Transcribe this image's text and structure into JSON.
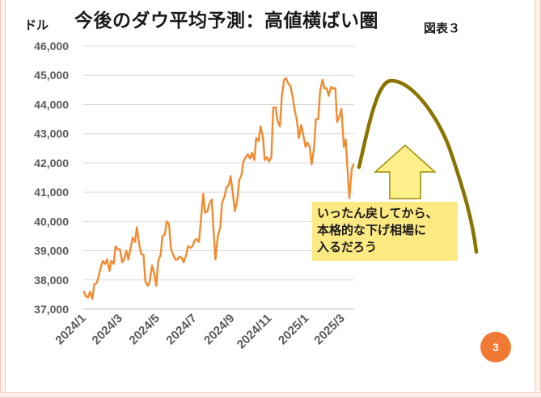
{
  "title": "今後のダウ平均予測：高値横ばい圏",
  "figure_label": "図表３",
  "unit_label": "ドル",
  "callout": {
    "lines": [
      "いったん戻してから、",
      "本格的な下げ相場に",
      "入るだろう"
    ]
  },
  "page_number": "3",
  "colors": {
    "line": "#f28b30",
    "forecast_curve": "#8b7300",
    "arrow_fill": "#fdf08a",
    "arrow_stroke": "#9c8a00",
    "callout_bg": "#fde982",
    "page_badge": "#f07a34",
    "grid": "#d9d9d9"
  },
  "chart_data": {
    "type": "line",
    "title": "今後のダウ平均予測：高値横ばい圏",
    "ylabel": "ドル",
    "xlabel": "",
    "ylim": [
      37000,
      46000
    ],
    "y_ticks": [
      37000,
      38000,
      39000,
      40000,
      41000,
      42000,
      43000,
      44000,
      45000,
      46000
    ],
    "y_tick_labels": [
      "37,000",
      "38,000",
      "39,000",
      "40,000",
      "41,000",
      "42,000",
      "43,000",
      "44,000",
      "45,000",
      "46,000"
    ],
    "x_ticks": [
      "2024-01-01",
      "2024-03-01",
      "2024-05-01",
      "2024-07-01",
      "2024-09-01",
      "2024-11-01",
      "2025-01-01",
      "2025-03-01"
    ],
    "x_tick_labels": [
      "2024/1",
      "2024/3",
      "2024/5",
      "2024/7",
      "2024/9",
      "2024/11",
      "2025/1",
      "2025/3"
    ],
    "grid": true,
    "legend": "none",
    "series": [
      {
        "points": [
          [
            "2024-01-02",
            37600
          ],
          [
            "2024-01-05",
            37450
          ],
          [
            "2024-01-09",
            37400
          ],
          [
            "2024-01-12",
            37600
          ],
          [
            "2024-01-16",
            37350
          ],
          [
            "2024-01-19",
            37850
          ],
          [
            "2024-01-23",
            37900
          ],
          [
            "2024-01-26",
            38100
          ],
          [
            "2024-01-30",
            38450
          ],
          [
            "2024-02-02",
            38650
          ],
          [
            "2024-02-06",
            38550
          ],
          [
            "2024-02-09",
            38700
          ],
          [
            "2024-02-13",
            38300
          ],
          [
            "2024-02-16",
            38650
          ],
          [
            "2024-02-20",
            38550
          ],
          [
            "2024-02-23",
            39150
          ],
          [
            "2024-02-27",
            39050
          ],
          [
            "2024-03-01",
            39050
          ],
          [
            "2024-03-05",
            38600
          ],
          [
            "2024-03-08",
            38700
          ],
          [
            "2024-03-12",
            39000
          ],
          [
            "2024-03-15",
            38700
          ],
          [
            "2024-03-19",
            39100
          ],
          [
            "2024-03-22",
            39450
          ],
          [
            "2024-03-26",
            39300
          ],
          [
            "2024-03-29",
            39800
          ],
          [
            "2024-04-02",
            39200
          ],
          [
            "2024-04-05",
            38900
          ],
          [
            "2024-04-09",
            38850
          ],
          [
            "2024-04-12",
            37950
          ],
          [
            "2024-04-16",
            37800
          ],
          [
            "2024-04-19",
            37950
          ],
          [
            "2024-04-23",
            38500
          ],
          [
            "2024-04-26",
            38250
          ],
          [
            "2024-04-30",
            37800
          ],
          [
            "2024-05-03",
            38650
          ],
          [
            "2024-05-07",
            38850
          ],
          [
            "2024-05-10",
            39500
          ],
          [
            "2024-05-14",
            39550
          ],
          [
            "2024-05-17",
            40000
          ],
          [
            "2024-05-21",
            39900
          ],
          [
            "2024-05-24",
            39050
          ],
          [
            "2024-05-28",
            38850
          ],
          [
            "2024-05-31",
            38700
          ],
          [
            "2024-06-04",
            38700
          ],
          [
            "2024-06-07",
            38800
          ],
          [
            "2024-06-11",
            38750
          ],
          [
            "2024-06-14",
            38600
          ],
          [
            "2024-06-18",
            38850
          ],
          [
            "2024-06-21",
            39150
          ],
          [
            "2024-06-25",
            39100
          ],
          [
            "2024-06-28",
            39150
          ],
          [
            "2024-07-02",
            39350
          ],
          [
            "2024-07-05",
            39400
          ],
          [
            "2024-07-09",
            39300
          ],
          [
            "2024-07-12",
            40000
          ],
          [
            "2024-07-16",
            40950
          ],
          [
            "2024-07-19",
            40300
          ],
          [
            "2024-07-23",
            40350
          ],
          [
            "2024-07-26",
            40600
          ],
          [
            "2024-07-30",
            40750
          ],
          [
            "2024-08-02",
            39700
          ],
          [
            "2024-08-05",
            38700
          ],
          [
            "2024-08-09",
            39500
          ],
          [
            "2024-08-13",
            39800
          ],
          [
            "2024-08-16",
            40650
          ],
          [
            "2024-08-20",
            40850
          ],
          [
            "2024-08-23",
            41150
          ],
          [
            "2024-08-27",
            41250
          ],
          [
            "2024-08-30",
            41550
          ],
          [
            "2024-09-03",
            40900
          ],
          [
            "2024-09-06",
            40350
          ],
          [
            "2024-09-10",
            40750
          ],
          [
            "2024-09-13",
            41400
          ],
          [
            "2024-09-17",
            41600
          ],
          [
            "2024-09-20",
            42050
          ],
          [
            "2024-09-24",
            42200
          ],
          [
            "2024-09-27",
            42300
          ],
          [
            "2024-10-01",
            42150
          ],
          [
            "2024-10-04",
            42350
          ],
          [
            "2024-10-08",
            42100
          ],
          [
            "2024-10-11",
            42850
          ],
          [
            "2024-10-15",
            42750
          ],
          [
            "2024-10-18",
            43250
          ],
          [
            "2024-10-22",
            42900
          ],
          [
            "2024-10-25",
            42100
          ],
          [
            "2024-10-29",
            42200
          ],
          [
            "2024-11-01",
            42050
          ],
          [
            "2024-11-05",
            42200
          ],
          [
            "2024-11-08",
            43900
          ],
          [
            "2024-11-12",
            43900
          ],
          [
            "2024-11-15",
            43450
          ],
          [
            "2024-11-19",
            43250
          ],
          [
            "2024-11-22",
            44250
          ],
          [
            "2024-11-26",
            44850
          ],
          [
            "2024-11-29",
            44900
          ],
          [
            "2024-12-03",
            44700
          ],
          [
            "2024-12-06",
            44650
          ],
          [
            "2024-12-10",
            44250
          ],
          [
            "2024-12-13",
            43850
          ],
          [
            "2024-12-17",
            43450
          ],
          [
            "2024-12-20",
            42850
          ],
          [
            "2024-12-24",
            43300
          ],
          [
            "2024-12-27",
            42990
          ],
          [
            "2024-12-31",
            42550
          ],
          [
            "2025-01-03",
            42700
          ],
          [
            "2025-01-07",
            42550
          ],
          [
            "2025-01-10",
            41950
          ],
          [
            "2025-01-14",
            42500
          ],
          [
            "2025-01-17",
            43500
          ],
          [
            "2025-01-21",
            43500
          ],
          [
            "2025-01-24",
            44450
          ],
          [
            "2025-01-28",
            44850
          ],
          [
            "2025-01-31",
            44550
          ],
          [
            "2025-02-04",
            44550
          ],
          [
            "2025-02-07",
            44300
          ],
          [
            "2025-02-11",
            44600
          ],
          [
            "2025-02-14",
            44550
          ],
          [
            "2025-02-18",
            44550
          ],
          [
            "2025-02-21",
            43400
          ],
          [
            "2025-02-25",
            43600
          ],
          [
            "2025-02-28",
            43850
          ],
          [
            "2025-03-04",
            42550
          ],
          [
            "2025-03-07",
            42800
          ],
          [
            "2025-03-11",
            41450
          ],
          [
            "2025-03-13",
            40800
          ],
          [
            "2025-03-17",
            41800
          ],
          [
            "2025-03-20",
            41950
          ]
        ]
      }
    ]
  }
}
